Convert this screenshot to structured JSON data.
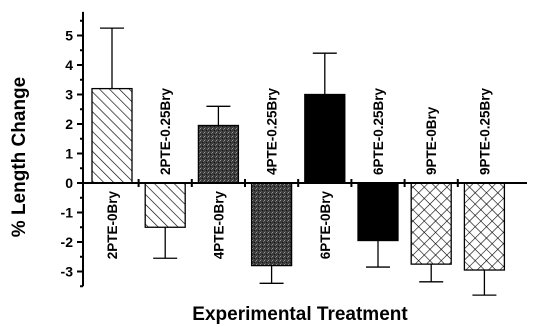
{
  "chart_data": {
    "type": "bar",
    "title": "",
    "xlabel": "Experimental Treatment",
    "ylabel": "% Length Change",
    "ylim": [
      -3.5,
      5.8
    ],
    "yticks": [
      -3,
      -2,
      -1,
      0,
      1,
      2,
      3,
      4,
      5
    ],
    "categories": [
      "2PTE-0Bry",
      "2PTE-0.25Bry",
      "4PTE-0Bry",
      "4PTE-0.25Bry",
      "6PTE-0Bry",
      "6PTE-0.25Bry",
      "9PTE-0Bry",
      "9PTE-0.25Bry"
    ],
    "values": [
      3.2,
      -1.5,
      1.95,
      -2.8,
      3.0,
      -1.95,
      -2.75,
      -2.95
    ],
    "errors": [
      2.05,
      1.05,
      0.65,
      0.6,
      1.4,
      0.9,
      0.6,
      0.85
    ],
    "fills": [
      "diag-hatch",
      "diag-hatch",
      "dark-stipple",
      "dark-stipple",
      "black",
      "black",
      "crosshatch",
      "crosshatch"
    ],
    "grid": false,
    "legend": "none"
  }
}
